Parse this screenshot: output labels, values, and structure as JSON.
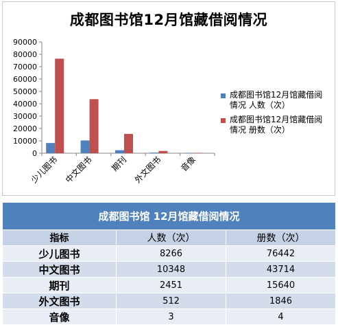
{
  "chart_data": {
    "type": "bar",
    "title": "成都图书馆12月馆藏借阅情况",
    "categories": [
      "少儿图书",
      "中文图书",
      "期刊",
      "外文图书",
      "音像"
    ],
    "series": [
      {
        "name": "成都图书馆12月馆藏借阅情况 人数（次）",
        "values": [
          8266,
          10348,
          2451,
          512,
          3
        ],
        "color": "#4f81bd"
      },
      {
        "name": "成都图书馆12月馆藏借阅情况 册数（次）",
        "values": [
          76442,
          43714,
          15640,
          1846,
          4
        ],
        "color": "#c0504d"
      }
    ],
    "ylim": [
      0,
      90000
    ],
    "yticks": [
      "0",
      "10000",
      "20000",
      "30000",
      "40000",
      "50000",
      "60000",
      "70000",
      "80000",
      "90000"
    ],
    "legend_position": "right",
    "grid": false
  },
  "table": {
    "title": "成都图书馆 12月馆藏借阅情况",
    "headers": [
      "指标",
      "人数（次）",
      "册数（次）"
    ],
    "rows": [
      {
        "label": "少儿图书",
        "people": "8266",
        "volumes": "76442"
      },
      {
        "label": "中文图书",
        "people": "10348",
        "volumes": "43714"
      },
      {
        "label": "期刊",
        "people": "2451",
        "volumes": "15640"
      },
      {
        "label": "外文图书",
        "people": "512",
        "volumes": "1846"
      },
      {
        "label": "音像",
        "people": "3",
        "volumes": "4"
      }
    ]
  }
}
